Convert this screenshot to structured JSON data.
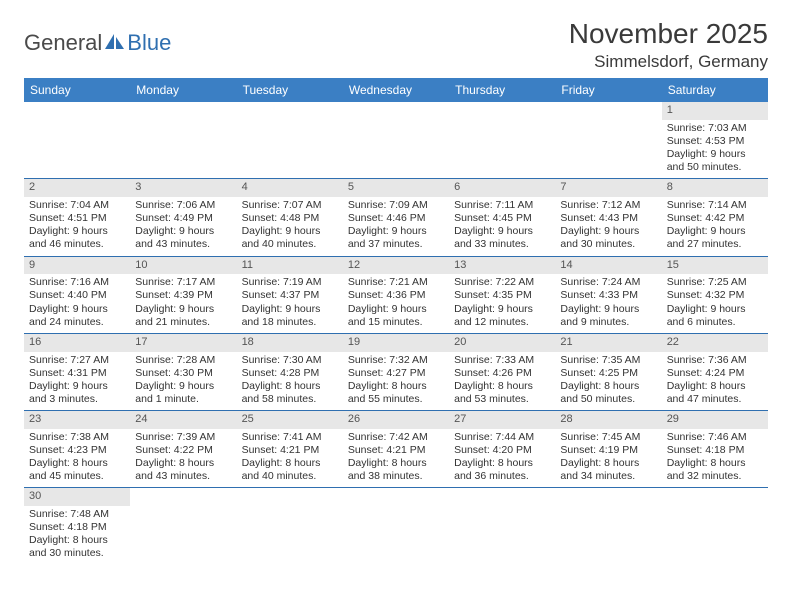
{
  "brand": {
    "part1": "General",
    "part2": "Blue"
  },
  "title": "November 2025",
  "location": "Simmelsdorf, Germany",
  "colors": {
    "header_bg": "#3b7fc4",
    "header_text": "#ffffff",
    "daynum_bg": "#e7e7e7",
    "row_border": "#2f6fb0",
    "text": "#333333",
    "title_text": "#3a3a3a"
  },
  "daysOfWeek": [
    "Sunday",
    "Monday",
    "Tuesday",
    "Wednesday",
    "Thursday",
    "Friday",
    "Saturday"
  ],
  "weeks": [
    [
      null,
      null,
      null,
      null,
      null,
      null,
      {
        "n": "1",
        "sunrise": "Sunrise: 7:03 AM",
        "sunset": "Sunset: 4:53 PM",
        "daylight": "Daylight: 9 hours and 50 minutes."
      }
    ],
    [
      {
        "n": "2",
        "sunrise": "Sunrise: 7:04 AM",
        "sunset": "Sunset: 4:51 PM",
        "daylight": "Daylight: 9 hours and 46 minutes."
      },
      {
        "n": "3",
        "sunrise": "Sunrise: 7:06 AM",
        "sunset": "Sunset: 4:49 PM",
        "daylight": "Daylight: 9 hours and 43 minutes."
      },
      {
        "n": "4",
        "sunrise": "Sunrise: 7:07 AM",
        "sunset": "Sunset: 4:48 PM",
        "daylight": "Daylight: 9 hours and 40 minutes."
      },
      {
        "n": "5",
        "sunrise": "Sunrise: 7:09 AM",
        "sunset": "Sunset: 4:46 PM",
        "daylight": "Daylight: 9 hours and 37 minutes."
      },
      {
        "n": "6",
        "sunrise": "Sunrise: 7:11 AM",
        "sunset": "Sunset: 4:45 PM",
        "daylight": "Daylight: 9 hours and 33 minutes."
      },
      {
        "n": "7",
        "sunrise": "Sunrise: 7:12 AM",
        "sunset": "Sunset: 4:43 PM",
        "daylight": "Daylight: 9 hours and 30 minutes."
      },
      {
        "n": "8",
        "sunrise": "Sunrise: 7:14 AM",
        "sunset": "Sunset: 4:42 PM",
        "daylight": "Daylight: 9 hours and 27 minutes."
      }
    ],
    [
      {
        "n": "9",
        "sunrise": "Sunrise: 7:16 AM",
        "sunset": "Sunset: 4:40 PM",
        "daylight": "Daylight: 9 hours and 24 minutes."
      },
      {
        "n": "10",
        "sunrise": "Sunrise: 7:17 AM",
        "sunset": "Sunset: 4:39 PM",
        "daylight": "Daylight: 9 hours and 21 minutes."
      },
      {
        "n": "11",
        "sunrise": "Sunrise: 7:19 AM",
        "sunset": "Sunset: 4:37 PM",
        "daylight": "Daylight: 9 hours and 18 minutes."
      },
      {
        "n": "12",
        "sunrise": "Sunrise: 7:21 AM",
        "sunset": "Sunset: 4:36 PM",
        "daylight": "Daylight: 9 hours and 15 minutes."
      },
      {
        "n": "13",
        "sunrise": "Sunrise: 7:22 AM",
        "sunset": "Sunset: 4:35 PM",
        "daylight": "Daylight: 9 hours and 12 minutes."
      },
      {
        "n": "14",
        "sunrise": "Sunrise: 7:24 AM",
        "sunset": "Sunset: 4:33 PM",
        "daylight": "Daylight: 9 hours and 9 minutes."
      },
      {
        "n": "15",
        "sunrise": "Sunrise: 7:25 AM",
        "sunset": "Sunset: 4:32 PM",
        "daylight": "Daylight: 9 hours and 6 minutes."
      }
    ],
    [
      {
        "n": "16",
        "sunrise": "Sunrise: 7:27 AM",
        "sunset": "Sunset: 4:31 PM",
        "daylight": "Daylight: 9 hours and 3 minutes."
      },
      {
        "n": "17",
        "sunrise": "Sunrise: 7:28 AM",
        "sunset": "Sunset: 4:30 PM",
        "daylight": "Daylight: 9 hours and 1 minute."
      },
      {
        "n": "18",
        "sunrise": "Sunrise: 7:30 AM",
        "sunset": "Sunset: 4:28 PM",
        "daylight": "Daylight: 8 hours and 58 minutes."
      },
      {
        "n": "19",
        "sunrise": "Sunrise: 7:32 AM",
        "sunset": "Sunset: 4:27 PM",
        "daylight": "Daylight: 8 hours and 55 minutes."
      },
      {
        "n": "20",
        "sunrise": "Sunrise: 7:33 AM",
        "sunset": "Sunset: 4:26 PM",
        "daylight": "Daylight: 8 hours and 53 minutes."
      },
      {
        "n": "21",
        "sunrise": "Sunrise: 7:35 AM",
        "sunset": "Sunset: 4:25 PM",
        "daylight": "Daylight: 8 hours and 50 minutes."
      },
      {
        "n": "22",
        "sunrise": "Sunrise: 7:36 AM",
        "sunset": "Sunset: 4:24 PM",
        "daylight": "Daylight: 8 hours and 47 minutes."
      }
    ],
    [
      {
        "n": "23",
        "sunrise": "Sunrise: 7:38 AM",
        "sunset": "Sunset: 4:23 PM",
        "daylight": "Daylight: 8 hours and 45 minutes."
      },
      {
        "n": "24",
        "sunrise": "Sunrise: 7:39 AM",
        "sunset": "Sunset: 4:22 PM",
        "daylight": "Daylight: 8 hours and 43 minutes."
      },
      {
        "n": "25",
        "sunrise": "Sunrise: 7:41 AM",
        "sunset": "Sunset: 4:21 PM",
        "daylight": "Daylight: 8 hours and 40 minutes."
      },
      {
        "n": "26",
        "sunrise": "Sunrise: 7:42 AM",
        "sunset": "Sunset: 4:21 PM",
        "daylight": "Daylight: 8 hours and 38 minutes."
      },
      {
        "n": "27",
        "sunrise": "Sunrise: 7:44 AM",
        "sunset": "Sunset: 4:20 PM",
        "daylight": "Daylight: 8 hours and 36 minutes."
      },
      {
        "n": "28",
        "sunrise": "Sunrise: 7:45 AM",
        "sunset": "Sunset: 4:19 PM",
        "daylight": "Daylight: 8 hours and 34 minutes."
      },
      {
        "n": "29",
        "sunrise": "Sunrise: 7:46 AM",
        "sunset": "Sunset: 4:18 PM",
        "daylight": "Daylight: 8 hours and 32 minutes."
      }
    ],
    [
      {
        "n": "30",
        "sunrise": "Sunrise: 7:48 AM",
        "sunset": "Sunset: 4:18 PM",
        "daylight": "Daylight: 8 hours and 30 minutes."
      },
      null,
      null,
      null,
      null,
      null,
      null
    ]
  ]
}
